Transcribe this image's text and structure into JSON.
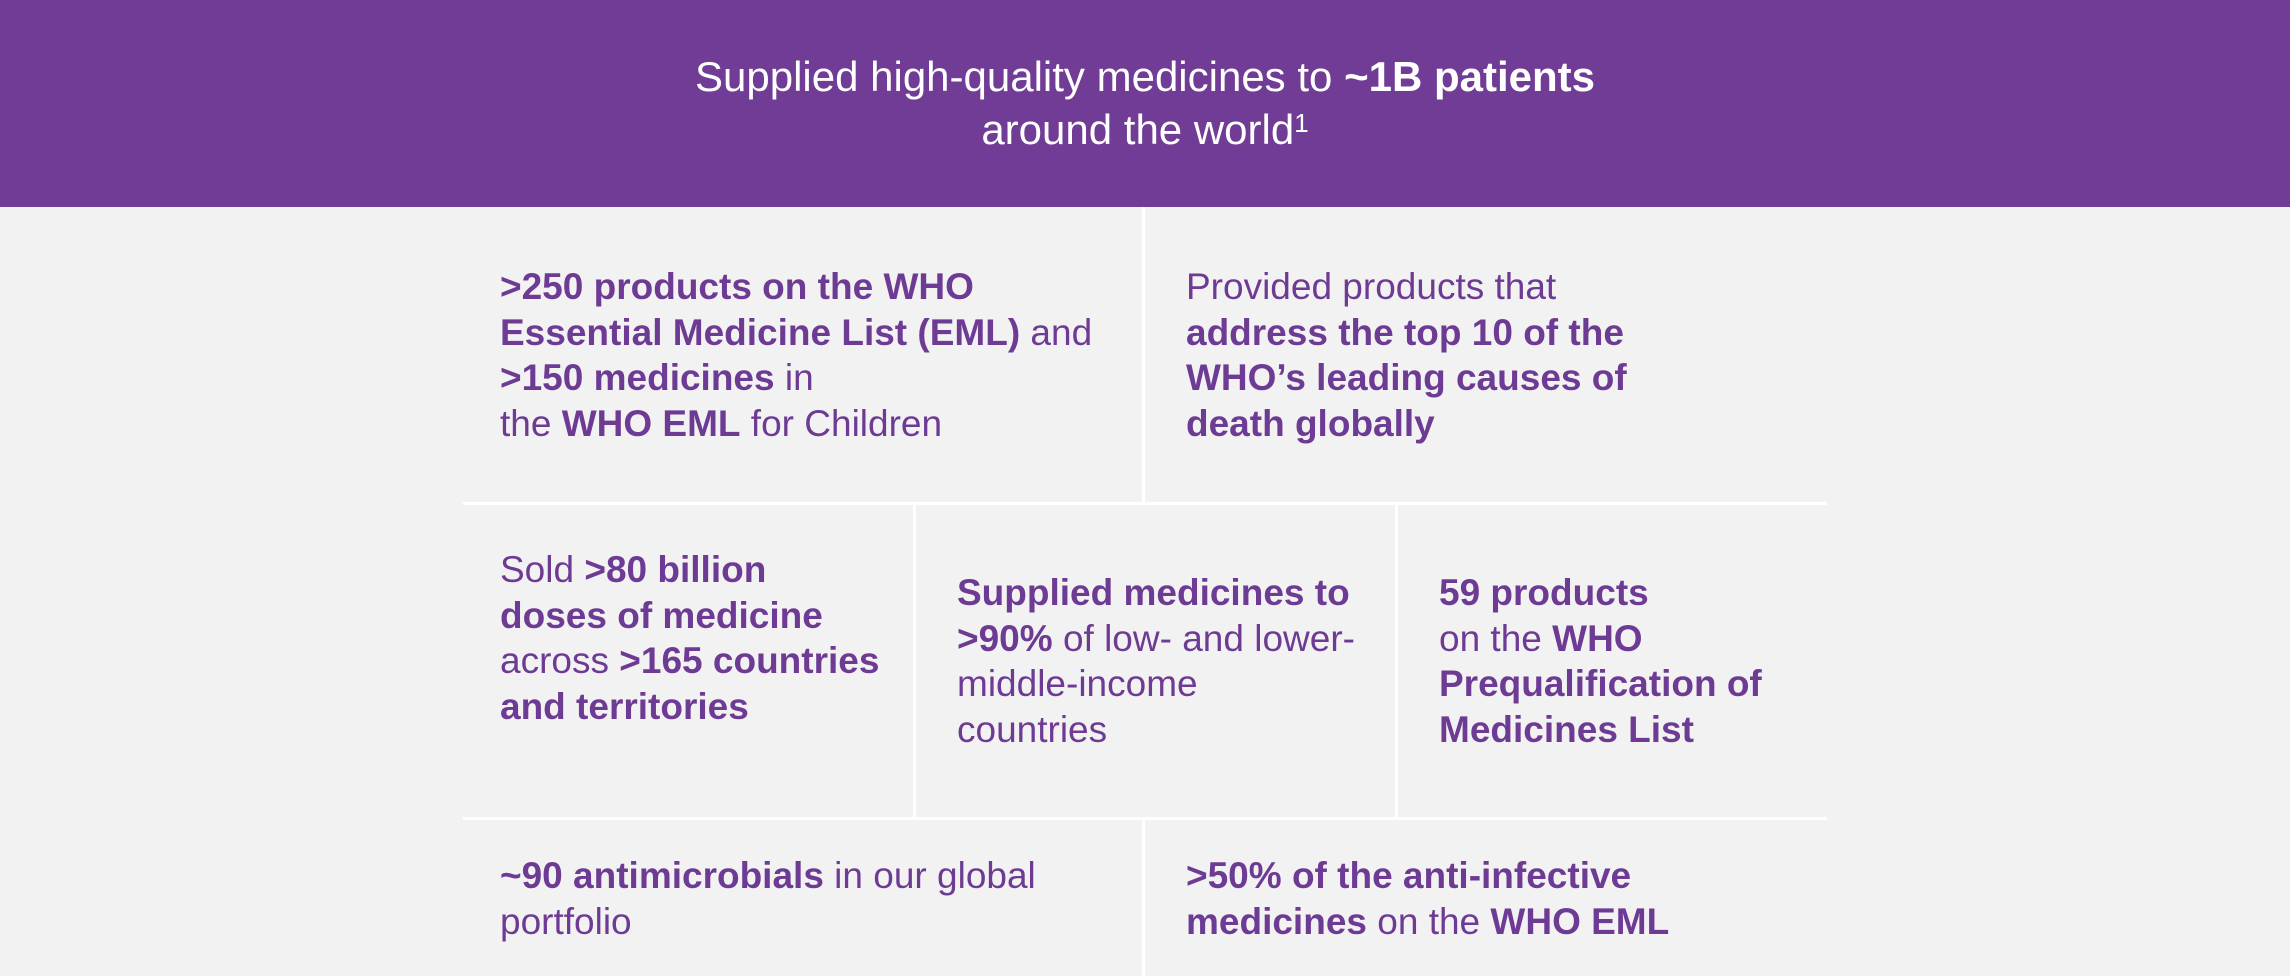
{
  "banner": {
    "line1_regular": "Supplied high-quality medicines to ",
    "line1_bold": "~1B patients",
    "line2_regular": "around the world",
    "line2_footnote": "1"
  },
  "cells": {
    "eml_products": {
      "p1_bold": ">250 products on the WHO Essential Medicine List (EML)",
      "p2": " and ",
      "p3_bold": ">150 medicines",
      "p4": " in",
      "p5": "the ",
      "p6_bold": "WHO EML",
      "p7": " for Children"
    },
    "leading_causes": {
      "p1": "Provided products that",
      "p2_bold": "address the top 10 of the WHO’s leading causes of death globally"
    },
    "doses": {
      "p1": "Sold ",
      "p2_bold": ">80 billion doses of medicine",
      "p3": " across ",
      "p4_bold": ">165 countries and territories"
    },
    "low_income": {
      "p1_bold": "Supplied medicines to >90%",
      "p2": " of low- and lower-middle-income countries"
    },
    "prequalification": {
      "p1_bold": "59 products",
      "p2": "on the ",
      "p3_bold": "WHO Prequalification of Medicines List"
    },
    "antimicrobials": {
      "p1_bold": "~90 antimicrobials",
      "p2": " in our global portfolio"
    },
    "anti_infective": {
      "p1_bold": ">50% of the anti-infective medicines",
      "p2": " on the ",
      "p3_bold": "WHO EML"
    }
  },
  "colors": {
    "banner_background": "#703c95",
    "text_purple": "#6e3b94",
    "page_background": "#f2f2f2",
    "divider": "#ffffff"
  }
}
